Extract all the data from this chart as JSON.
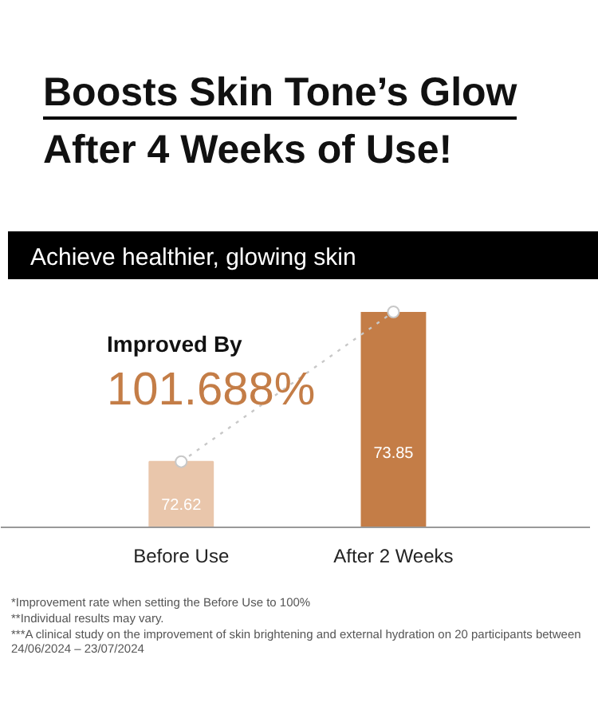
{
  "chart_data": {
    "type": "bar",
    "title": "Boosts Skin Tone’s Glow\nAfter 4 Weeks of Use!",
    "subtitle": "Achieve healthier, glowing skin",
    "categories": [
      "Before Use",
      "After 2 Weeks"
    ],
    "values": [
      72.62,
      73.85
    ],
    "colors": [
      "#e9c6ab",
      "#c47d47"
    ],
    "data_labels": true,
    "ylim": [
      72.08,
      73.85
    ],
    "tick_labels": "x",
    "grid": false,
    "series": [
      {
        "type": "line",
        "values": [
          72.62,
          73.85
        ],
        "value_labels": [
          null,
          null
        ],
        "color": "#c8c8c8",
        "line_style": "dotted",
        "marker": "circle"
      }
    ],
    "annotations": [
      "Improved By",
      "101.688%",
      "*Improvement rate when setting the Before Use to 100%",
      "**Individual results may vary.",
      "***A clinical study on the improvement of skin brightening and external hydration on 20 participants between 24/06/2024 – 23/07/2024"
    ]
  }
}
